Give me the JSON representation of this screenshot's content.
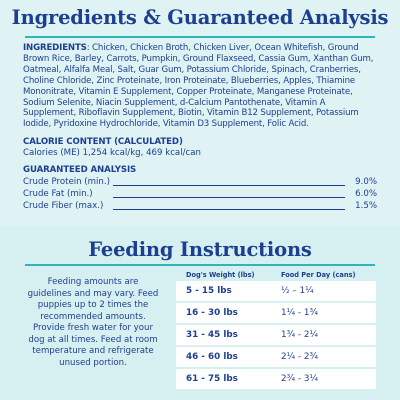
{
  "analysis_section": {
    "title": "Ingredients & Guaranteed Analysis",
    "ingredients_label": "INGREDIENTS",
    "ingredients_text": ": Chicken, Chicken Broth, Chicken Liver, Ocean Whitefish, Ground Brown Rice, Barley, Carrots, Pumpkin, Ground Flaxseed, Cassia Gum, Xanthan Gum, Oatmeal, Alfalfa Meal, Salt, Guar Gum, Potassium Chloride, Spinach, Cranberries, Choline Chloride, Zinc Proteinate, Iron Proteinate, Blueberries, Apples, Thiamine Mononitrate, Vitamin E Supplement, Copper Proteinate, Manganese Proteinate, Sodium Selenite, Niacin Supplement, d-Calcium Pantothenate, Vitamin A Supplement, Riboflavin Supplement, Biotin, Vitamin B12 Supplement, Potassium Iodide, Pyridoxine Hydrochloride, Vitamin D3 Supplement, Folic Acid.",
    "calorie_heading": "CALORIE CONTENT (CALCULATED)",
    "calorie_text": "Calories (ME) 1,254 kcal/kg, 469 kcal/can",
    "guaranteed_heading": "GUARANTEED ANALYSIS",
    "rows": [
      {
        "label": "Crude Protein (min.)",
        "value": "9.0%"
      },
      {
        "label": "Crude Fat (min.)",
        "value": "6.0%"
      },
      {
        "label": "Crude Fiber (max.)",
        "value": "1.5%"
      }
    ]
  },
  "feeding_section": {
    "title": "Feeding Instructions",
    "notes": "Feeding amounts are guidelines and may vary. Feed puppies up to 2 times the recommended amounts. Provide fresh water for your dog at all times. Feed at room temperature and refrigerate unused portion.",
    "col_weight": "Dog's Weight (lbs)",
    "col_food": "Food Per Day (cans)",
    "rows": [
      {
        "weight": "5 - 15 lbs",
        "food": "½ – 1¼"
      },
      {
        "weight": "16 - 30 lbs",
        "food": "1¼ - 1¾"
      },
      {
        "weight": "31 - 45 lbs",
        "food": "1¾ - 2¼"
      },
      {
        "weight": "46 - 60 lbs",
        "food": "2¼ - 2¾"
      },
      {
        "weight": "61 - 75 lbs",
        "food": "2¾ - 3¼"
      }
    ]
  }
}
